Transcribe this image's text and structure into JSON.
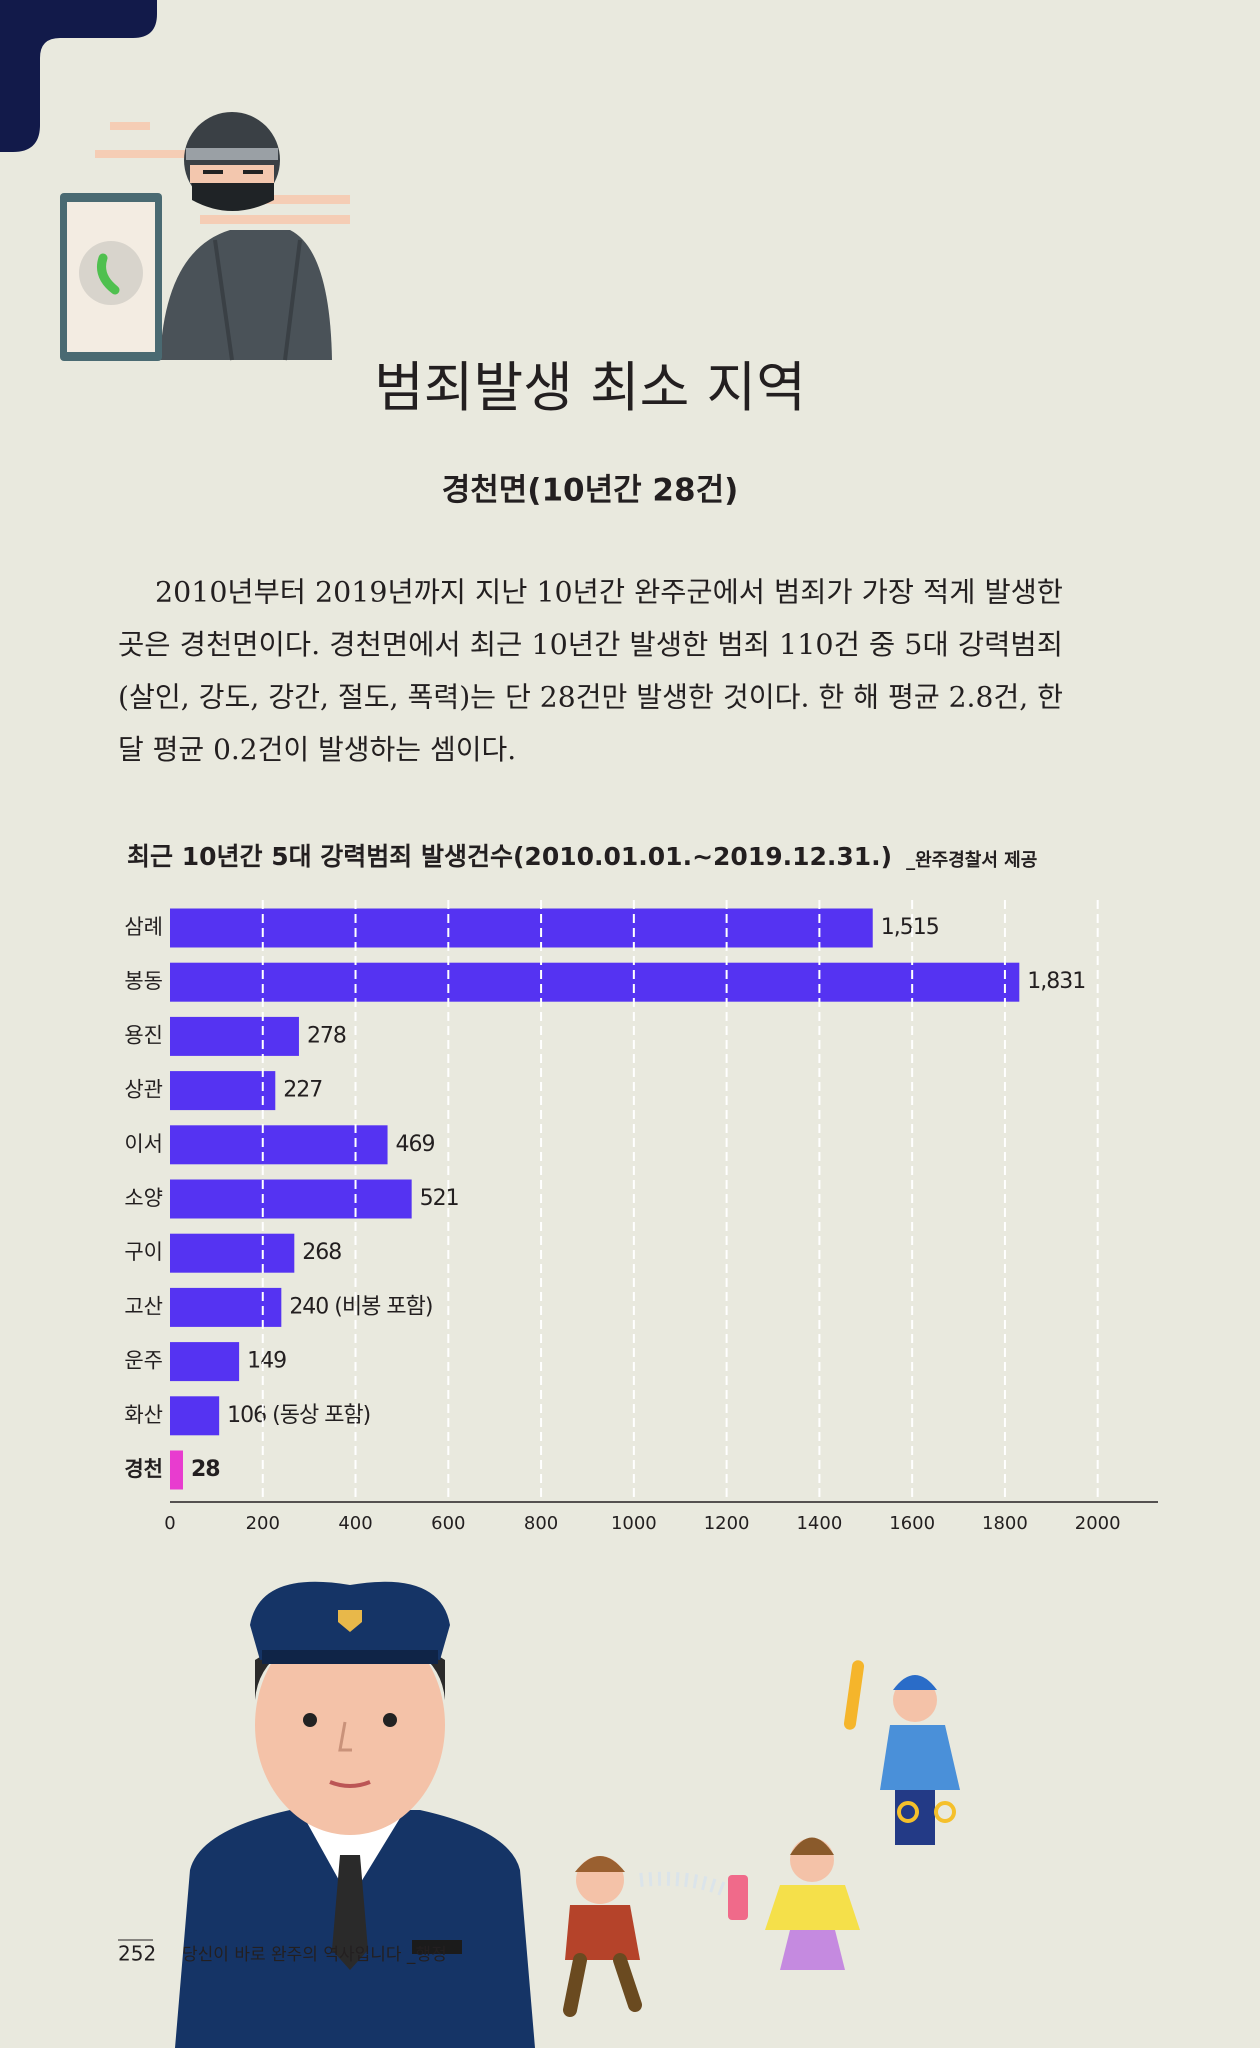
{
  "header": {
    "title": "범죄발생 최소 지역",
    "subtitle": "경천면(10년간 28건)"
  },
  "body": {
    "lines": [
      "2010년부터 2019년까지 지난 10년간 완주군에서 범죄가 가장 적게 발생한",
      "곳은 경천면이다. 경천면에서 최근 10년간 발생한 범죄 110건 중 5대 강력범죄",
      "(살인, 강도, 강간, 절도, 폭력)는 단 28건만 발생한 것이다. 한 해 평균 2.8건, 한",
      "달 평균 0.2건이 발생하는 셈이다."
    ]
  },
  "chart_data": {
    "type": "hbar",
    "title": "최근 10년간 5대 강력범죄 발생건수(2010.01.01.~2019.12.31.)",
    "source": "_완주경찰서 제공",
    "categories": [
      "삼례",
      "봉동",
      "용진",
      "상관",
      "이서",
      "소양",
      "구이",
      "고산",
      "운주",
      "화산",
      "경천"
    ],
    "values": [
      1515,
      1831,
      278,
      227,
      469,
      521,
      268,
      240,
      149,
      106,
      28
    ],
    "value_labels": [
      "1,515",
      "1,831",
      "278",
      "227",
      "469",
      "521",
      "268",
      "240 (비봉 포함)",
      "149",
      "106 (동상 포함)",
      "28"
    ],
    "colors": [
      "#5533f2",
      "#5533f2",
      "#5533f2",
      "#5533f2",
      "#5533f2",
      "#5533f2",
      "#5533f2",
      "#5533f2",
      "#5533f2",
      "#5533f2",
      "#e83ccf"
    ],
    "highlight_color": "#e83ccf",
    "xlim": [
      0,
      2130
    ],
    "xticks": [
      0,
      200,
      400,
      600,
      800,
      1000,
      1200,
      1400,
      1600,
      1800,
      2000
    ],
    "grid": true
  },
  "footer": {
    "page_number": "252",
    "book_title": "당신이 바로 완주의 역사입니다 _행정"
  }
}
